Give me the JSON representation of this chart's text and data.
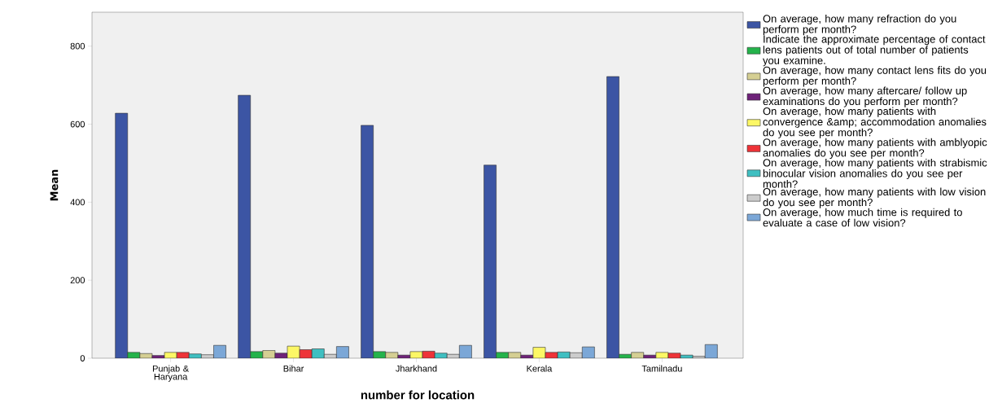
{
  "chart_data": {
    "type": "bar",
    "xlabel": "number for location",
    "ylabel": "Mean",
    "categories": [
      "Punjab & Haryana",
      "Bihar",
      "Jharkhand",
      "Kerala",
      "Tamilnadu"
    ],
    "series": [
      {
        "name": "On average, how many refraction do you perform per month?",
        "color": "#3c55a4",
        "values": [
          628,
          674,
          597,
          495,
          722
        ]
      },
      {
        "name": "Indicate the approximate percentage of contact lens patients out of total number of patients you examine.",
        "color": "#24b34b",
        "values": [
          15,
          17,
          17,
          15,
          10
        ]
      },
      {
        "name": "On average, how many contact lens fits do you perform per month?",
        "color": "#d5cf93",
        "values": [
          12,
          20,
          15,
          15,
          15
        ]
      },
      {
        "name": "On average, how many aftercare/ follow up examinations do you perform per month?",
        "color": "#6e2279",
        "values": [
          7,
          13,
          8,
          8,
          8
        ]
      },
      {
        "name": "On average, how many patients with convergence &amp; accommodation anomalies do you see per month?",
        "color": "#fcf765",
        "values": [
          15,
          31,
          17,
          28,
          15
        ]
      },
      {
        "name": "On average, how many patients with amblyopic anomalies do you see per month?",
        "color": "#ee3338",
        "values": [
          15,
          22,
          18,
          15,
          13
        ]
      },
      {
        "name": "On average, how many patients with strabismic binocular vision anomalies do you see per month?",
        "color": "#3fbfc1",
        "values": [
          11,
          24,
          13,
          16,
          8
        ]
      },
      {
        "name": "On average, how many patients with low vision do you see per month?",
        "color": "#cccccc",
        "values": [
          9,
          10,
          10,
          14,
          5
        ]
      },
      {
        "name": "On average, how much time is required to evaluate a case of low vision?",
        "color": "#7ba7d7",
        "values": [
          33,
          30,
          33,
          29,
          35
        ]
      }
    ],
    "ylim": [
      0,
      887
    ],
    "yticks": [
      0,
      200,
      400,
      600,
      800
    ],
    "legend": "right"
  }
}
